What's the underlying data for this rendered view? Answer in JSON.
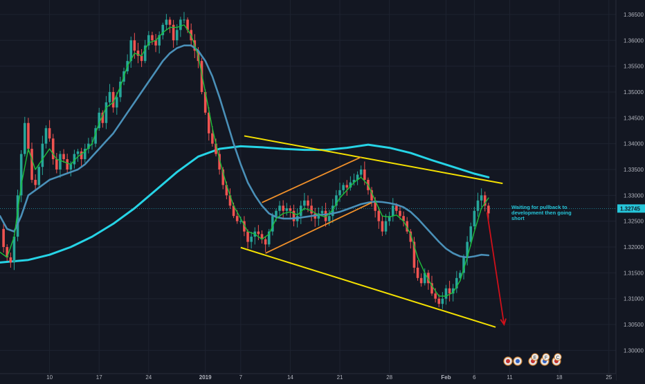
{
  "chart_data": {
    "type": "candlestick",
    "title": "",
    "price_axis": {
      "ticks": [
        "1.36500",
        "1.36000",
        "1.35500",
        "1.35000",
        "1.34500",
        "1.34000",
        "1.33500",
        "1.33000",
        "1.32500",
        "1.32000",
        "1.31500",
        "1.31000",
        "1.30500",
        "1.30000"
      ],
      "tick_values": [
        1.365,
        1.36,
        1.355,
        1.35,
        1.345,
        1.34,
        1.335,
        1.33,
        1.325,
        1.32,
        1.315,
        1.31,
        1.305,
        1.3
      ],
      "range": [
        1.2955,
        1.3678
      ]
    },
    "time_axis": {
      "ticks": [
        "10",
        "17",
        "24",
        "2019",
        "7",
        "14",
        "21",
        "28",
        "Feb",
        "6",
        "11",
        "18",
        "25"
      ],
      "tick_days": [
        0,
        7,
        14,
        22,
        27,
        34,
        41,
        48,
        56,
        60,
        65,
        72,
        79
      ],
      "range_days": [
        -7,
        80
      ]
    },
    "current_price": {
      "label": "1.32745",
      "value": 1.32745
    },
    "annotation": "Waiting for pullback to development then going short",
    "colors": {
      "background": "#131722",
      "up": "#26a69a",
      "down": "#ef5350",
      "ema_fast": "#1dbf3a",
      "ma_mid": "#4a90b8",
      "ma_slow": "#26d4e6",
      "channel_yellow": "#f5e100",
      "channel_orange": "#f0902a",
      "arrow": "#d0101a"
    },
    "price_path": [
      [
        -7.0,
        1.3235
      ],
      [
        -6.5,
        1.32
      ],
      [
        -6.0,
        1.318
      ],
      [
        -5.5,
        1.317
      ],
      [
        -5.0,
        1.322
      ],
      [
        -4.5,
        1.33
      ],
      [
        -4.0,
        1.338
      ],
      [
        -3.5,
        1.344
      ],
      [
        -3.0,
        1.339
      ],
      [
        -2.5,
        1.333
      ],
      [
        -2.0,
        1.332
      ],
      [
        -1.5,
        1.3355
      ],
      [
        -1.0,
        1.34
      ],
      [
        -0.5,
        1.343
      ],
      [
        0.0,
        1.341
      ],
      [
        0.5,
        1.337
      ],
      [
        1.0,
        1.335
      ],
      [
        1.5,
        1.338
      ],
      [
        2.0,
        1.337
      ],
      [
        2.5,
        1.335
      ],
      [
        3.0,
        1.336
      ],
      [
        3.5,
        1.338
      ],
      [
        4.0,
        1.3385
      ],
      [
        4.5,
        1.337
      ],
      [
        5.0,
        1.339
      ],
      [
        5.5,
        1.34
      ],
      [
        6.0,
        1.34
      ],
      [
        6.5,
        1.343
      ],
      [
        7.0,
        1.346
      ],
      [
        7.5,
        1.344
      ],
      [
        8.0,
        1.348
      ],
      [
        8.5,
        1.35
      ],
      [
        9.0,
        1.347
      ],
      [
        9.5,
        1.349
      ],
      [
        10.0,
        1.352
      ],
      [
        10.5,
        1.354
      ],
      [
        11.0,
        1.356
      ],
      [
        11.5,
        1.36
      ],
      [
        12.0,
        1.358
      ],
      [
        12.5,
        1.357
      ],
      [
        13.0,
        1.356
      ],
      [
        13.5,
        1.359
      ],
      [
        14.0,
        1.361
      ],
      [
        14.5,
        1.36
      ],
      [
        15.0,
        1.359
      ],
      [
        15.5,
        1.361
      ],
      [
        16.0,
        1.363
      ],
      [
        16.5,
        1.364
      ],
      [
        17.0,
        1.363
      ],
      [
        17.5,
        1.36
      ],
      [
        18.0,
        1.362
      ],
      [
        18.5,
        1.364
      ],
      [
        19.0,
        1.364
      ],
      [
        19.5,
        1.362
      ],
      [
        20.0,
        1.36
      ],
      [
        20.5,
        1.358
      ],
      [
        21.0,
        1.356
      ],
      [
        21.5,
        1.35
      ],
      [
        22.0,
        1.346
      ],
      [
        22.5,
        1.342
      ],
      [
        23.0,
        1.34
      ],
      [
        23.5,
        1.338
      ],
      [
        24.0,
        1.335
      ],
      [
        24.5,
        1.332
      ],
      [
        25.0,
        1.33
      ],
      [
        25.5,
        1.328
      ],
      [
        26.0,
        1.326
      ],
      [
        26.5,
        1.325
      ],
      [
        27.0,
        1.325
      ],
      [
        27.5,
        1.323
      ],
      [
        28.0,
        1.321
      ],
      [
        28.5,
        1.322
      ],
      [
        29.0,
        1.323
      ],
      [
        29.5,
        1.3225
      ],
      [
        30.0,
        1.3215
      ],
      [
        30.5,
        1.3205
      ],
      [
        31.0,
        1.323
      ],
      [
        31.5,
        1.326
      ],
      [
        32.0,
        1.327
      ],
      [
        32.5,
        1.328
      ],
      [
        33.0,
        1.327
      ],
      [
        33.5,
        1.3275
      ],
      [
        34.0,
        1.327
      ],
      [
        34.5,
        1.325
      ],
      [
        35.0,
        1.326
      ],
      [
        35.5,
        1.328
      ],
      [
        36.0,
        1.329
      ],
      [
        36.5,
        1.328
      ],
      [
        37.0,
        1.3265
      ],
      [
        37.5,
        1.3255
      ],
      [
        38.0,
        1.3265
      ],
      [
        38.5,
        1.327
      ],
      [
        39.0,
        1.325
      ],
      [
        39.5,
        1.326
      ],
      [
        40.0,
        1.328
      ],
      [
        40.5,
        1.33
      ],
      [
        41.0,
        1.331
      ],
      [
        41.5,
        1.332
      ],
      [
        42.0,
        1.3315
      ],
      [
        42.5,
        1.3325
      ],
      [
        43.0,
        1.333
      ],
      [
        43.5,
        1.334
      ],
      [
        44.0,
        1.335
      ],
      [
        44.5,
        1.333
      ],
      [
        45.0,
        1.331
      ],
      [
        45.5,
        1.329
      ],
      [
        46.0,
        1.327
      ],
      [
        46.5,
        1.325
      ],
      [
        47.0,
        1.323
      ],
      [
        47.5,
        1.325
      ],
      [
        48.0,
        1.326
      ],
      [
        48.5,
        1.328
      ],
      [
        49.0,
        1.327
      ],
      [
        49.5,
        1.326
      ],
      [
        50.0,
        1.325
      ],
      [
        50.5,
        1.323
      ],
      [
        51.0,
        1.321
      ],
      [
        51.5,
        1.316
      ],
      [
        52.0,
        1.314
      ],
      [
        52.5,
        1.313
      ],
      [
        53.0,
        1.315
      ],
      [
        53.5,
        1.313
      ],
      [
        54.0,
        1.311
      ],
      [
        54.5,
        1.31
      ],
      [
        55.0,
        1.309
      ],
      [
        55.5,
        1.31
      ],
      [
        56.0,
        1.312
      ],
      [
        56.5,
        1.311
      ],
      [
        57.0,
        1.312
      ],
      [
        57.5,
        1.314
      ],
      [
        58.0,
        1.315
      ],
      [
        58.5,
        1.318
      ],
      [
        59.0,
        1.321
      ],
      [
        59.5,
        1.324
      ],
      [
        60.0,
        1.327
      ],
      [
        60.5,
        1.329
      ],
      [
        61.0,
        1.33
      ],
      [
        61.5,
        1.328
      ],
      [
        62.0,
        1.3265
      ]
    ],
    "ema_fast": [
      [
        -7.0,
        1.319
      ],
      [
        -6.0,
        1.318
      ],
      [
        -5.0,
        1.322
      ],
      [
        -4.0,
        1.332
      ],
      [
        -3.0,
        1.339
      ],
      [
        -2.0,
        1.335
      ],
      [
        -1.0,
        1.337
      ],
      [
        0.0,
        1.339
      ],
      [
        1.0,
        1.337
      ],
      [
        2.0,
        1.3365
      ],
      [
        3.0,
        1.336
      ],
      [
        4.0,
        1.3375
      ],
      [
        5.0,
        1.3385
      ],
      [
        6.0,
        1.34
      ],
      [
        7.0,
        1.344
      ],
      [
        8.0,
        1.347
      ],
      [
        9.0,
        1.348
      ],
      [
        10.0,
        1.351
      ],
      [
        11.0,
        1.355
      ],
      [
        12.0,
        1.3575
      ],
      [
        13.0,
        1.357
      ],
      [
        14.0,
        1.3595
      ],
      [
        15.0,
        1.36
      ],
      [
        16.0,
        1.3615
      ],
      [
        17.0,
        1.3625
      ],
      [
        18.0,
        1.3625
      ],
      [
        19.0,
        1.363
      ],
      [
        20.0,
        1.361
      ],
      [
        21.0,
        1.357
      ],
      [
        22.0,
        1.35
      ],
      [
        23.0,
        1.343
      ],
      [
        24.0,
        1.337
      ],
      [
        25.0,
        1.332
      ],
      [
        26.0,
        1.328
      ],
      [
        27.0,
        1.3255
      ],
      [
        28.0,
        1.323
      ],
      [
        29.0,
        1.3225
      ],
      [
        30.0,
        1.3215
      ],
      [
        31.0,
        1.3225
      ],
      [
        32.0,
        1.3255
      ],
      [
        33.0,
        1.3265
      ],
      [
        34.0,
        1.3268
      ],
      [
        35.0,
        1.3262
      ],
      [
        36.0,
        1.3275
      ],
      [
        37.0,
        1.327
      ],
      [
        38.0,
        1.3262
      ],
      [
        39.0,
        1.3258
      ],
      [
        40.0,
        1.3272
      ],
      [
        41.0,
        1.3295
      ],
      [
        42.0,
        1.331
      ],
      [
        43.0,
        1.3325
      ],
      [
        44.0,
        1.3335
      ],
      [
        45.0,
        1.332
      ],
      [
        46.0,
        1.329
      ],
      [
        47.0,
        1.326
      ],
      [
        48.0,
        1.3258
      ],
      [
        49.0,
        1.3262
      ],
      [
        50.0,
        1.325
      ],
      [
        51.0,
        1.3225
      ],
      [
        52.0,
        1.318
      ],
      [
        53.0,
        1.315
      ],
      [
        54.0,
        1.3125
      ],
      [
        55.0,
        1.3105
      ],
      [
        56.0,
        1.3105
      ],
      [
        57.0,
        1.3112
      ],
      [
        58.0,
        1.3135
      ],
      [
        59.0,
        1.318
      ],
      [
        60.0,
        1.323
      ],
      [
        61.0,
        1.3275
      ],
      [
        62.0,
        1.3295
      ]
    ],
    "ma_mid": [
      [
        -7.0,
        1.326
      ],
      [
        -6.0,
        1.3235
      ],
      [
        -5.0,
        1.323
      ],
      [
        -4.0,
        1.326
      ],
      [
        -3.0,
        1.33
      ],
      [
        -2.0,
        1.331
      ],
      [
        -1.0,
        1.332
      ],
      [
        0.0,
        1.333
      ],
      [
        1.0,
        1.3335
      ],
      [
        2.0,
        1.334
      ],
      [
        3.0,
        1.3345
      ],
      [
        4.0,
        1.335
      ],
      [
        5.0,
        1.336
      ],
      [
        6.0,
        1.3375
      ],
      [
        7.0,
        1.339
      ],
      [
        8.0,
        1.3405
      ],
      [
        9.0,
        1.342
      ],
      [
        10.0,
        1.344
      ],
      [
        11.0,
        1.346
      ],
      [
        12.0,
        1.348
      ],
      [
        13.0,
        1.35
      ],
      [
        14.0,
        1.352
      ],
      [
        15.0,
        1.354
      ],
      [
        16.0,
        1.356
      ],
      [
        17.0,
        1.3575
      ],
      [
        18.0,
        1.3585
      ],
      [
        19.0,
        1.359
      ],
      [
        20.0,
        1.359
      ],
      [
        21.0,
        1.358
      ],
      [
        22.0,
        1.356
      ],
      [
        23.0,
        1.353
      ],
      [
        24.0,
        1.349
      ],
      [
        25.0,
        1.3445
      ],
      [
        26.0,
        1.34
      ],
      [
        27.0,
        1.336
      ],
      [
        28.0,
        1.3325
      ],
      [
        29.0,
        1.33
      ],
      [
        30.0,
        1.328
      ],
      [
        31.0,
        1.3265
      ],
      [
        32.0,
        1.3258
      ],
      [
        33.0,
        1.3255
      ],
      [
        34.0,
        1.3255
      ],
      [
        35.0,
        1.3256
      ],
      [
        36.0,
        1.3258
      ],
      [
        37.0,
        1.326
      ],
      [
        38.0,
        1.3262
      ],
      [
        39.0,
        1.3263
      ],
      [
        40.0,
        1.3265
      ],
      [
        41.0,
        1.3268
      ],
      [
        42.0,
        1.3273
      ],
      [
        43.0,
        1.3278
      ],
      [
        44.0,
        1.3283
      ],
      [
        45.0,
        1.3286
      ],
      [
        46.0,
        1.3288
      ],
      [
        47.0,
        1.3287
      ],
      [
        48.0,
        1.3285
      ],
      [
        49.0,
        1.3282
      ],
      [
        50.0,
        1.3277
      ],
      [
        51.0,
        1.3268
      ],
      [
        52.0,
        1.3255
      ],
      [
        53.0,
        1.324
      ],
      [
        54.0,
        1.3225
      ],
      [
        55.0,
        1.321
      ],
      [
        56.0,
        1.3197
      ],
      [
        57.0,
        1.3188
      ],
      [
        58.0,
        1.3182
      ],
      [
        59.0,
        1.318
      ],
      [
        60.0,
        1.3182
      ],
      [
        61.0,
        1.3185
      ],
      [
        62.0,
        1.3184
      ]
    ],
    "ma_slow": [
      [
        -7.0,
        1.317
      ],
      [
        -3.0,
        1.3175
      ],
      [
        0.0,
        1.3185
      ],
      [
        3.0,
        1.32
      ],
      [
        6.0,
        1.322
      ],
      [
        9.0,
        1.3245
      ],
      [
        12.0,
        1.3275
      ],
      [
        15.0,
        1.331
      ],
      [
        18.0,
        1.3345
      ],
      [
        21.0,
        1.3375
      ],
      [
        24.0,
        1.339
      ],
      [
        27.0,
        1.3395
      ],
      [
        30.0,
        1.3393
      ],
      [
        33.0,
        1.339
      ],
      [
        36.0,
        1.3388
      ],
      [
        39.0,
        1.3388
      ],
      [
        42.0,
        1.3392
      ],
      [
        45.0,
        1.3398
      ],
      [
        48.0,
        1.3392
      ],
      [
        51.0,
        1.3382
      ],
      [
        54.0,
        1.3368
      ],
      [
        57.0,
        1.3355
      ],
      [
        60.0,
        1.3342
      ],
      [
        62.0,
        1.3335
      ]
    ],
    "channel_yellow": [
      {
        "x1": 27.5,
        "y1": 1.3415,
        "x2": 64.0,
        "y2": 1.3323
      },
      {
        "x1": 27.0,
        "y1": 1.3199,
        "x2": 63.0,
        "y2": 1.3045
      }
    ],
    "channel_orange": [
      {
        "x1": 30.0,
        "y1": 1.3286,
        "x2": 44.0,
        "y2": 1.3374
      },
      {
        "x1": 30.5,
        "y1": 1.3188,
        "x2": 45.5,
        "y2": 1.3286
      }
    ],
    "arrow": {
      "x1": 61.8,
      "y1": 1.3267,
      "x2": 64.2,
      "y2": 1.305
    },
    "flags": [
      "E",
      "F",
      "C"
    ]
  }
}
